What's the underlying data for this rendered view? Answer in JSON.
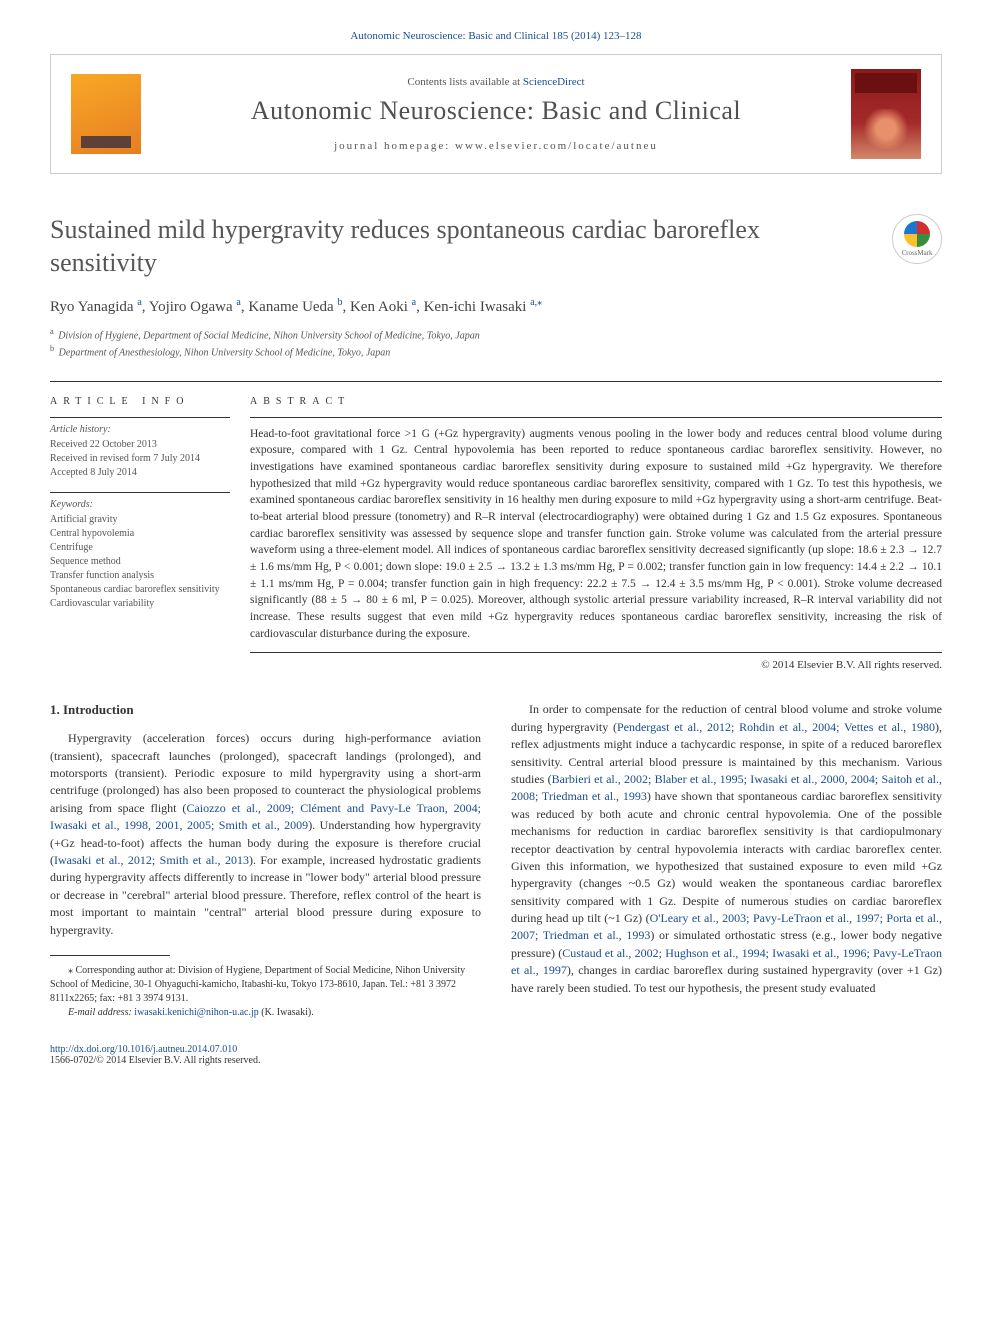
{
  "header": {
    "top_link_text": "Autonomic Neuroscience: Basic and Clinical 185 (2014) 123–128",
    "contents_line_prefix": "Contents lists available at ",
    "contents_link": "ScienceDirect",
    "journal_title": "Autonomic Neuroscience: Basic and Clinical",
    "homepage_label": "journal homepage: ",
    "homepage_url": "www.elsevier.com/locate/autneu",
    "crossmark_label": "CrossMark"
  },
  "article": {
    "title": "Sustained mild hypergravity reduces spontaneous cardiac baroreflex sensitivity",
    "authors_html": "Ryo Yanagida",
    "authors": [
      {
        "name": "Ryo Yanagida",
        "sup": "a"
      },
      {
        "name": "Yojiro Ogawa",
        "sup": "a"
      },
      {
        "name": "Kaname Ueda",
        "sup": "b"
      },
      {
        "name": "Ken Aoki",
        "sup": "a"
      },
      {
        "name": "Ken-ichi Iwasaki",
        "sup": "a,⁎"
      }
    ],
    "affiliations": [
      {
        "sup": "a",
        "text": "Division of Hygiene, Department of Social Medicine, Nihon University School of Medicine, Tokyo, Japan"
      },
      {
        "sup": "b",
        "text": "Department of Anesthesiology, Nihon University School of Medicine, Tokyo, Japan"
      }
    ]
  },
  "info": {
    "heading": "article info",
    "history_label": "Article history:",
    "received": "Received 22 October 2013",
    "revised": "Received in revised form 7 July 2014",
    "accepted": "Accepted 8 July 2014",
    "keywords_label": "Keywords:",
    "keywords": [
      "Artificial gravity",
      "Central hypovolemia",
      "Centrifuge",
      "Sequence method",
      "Transfer function analysis",
      "Spontaneous cardiac baroreflex sensitivity",
      "Cardiovascular variability"
    ]
  },
  "abstract": {
    "heading": "abstract",
    "text": "Head-to-foot gravitational force >1 G (+Gz hypergravity) augments venous pooling in the lower body and reduces central blood volume during exposure, compared with 1 Gz. Central hypovolemia has been reported to reduce spontaneous cardiac baroreflex sensitivity. However, no investigations have examined spontaneous cardiac baroreflex sensitivity during exposure to sustained mild +Gz hypergravity. We therefore hypothesized that mild +Gz hypergravity would reduce spontaneous cardiac baroreflex sensitivity, compared with 1 Gz. To test this hypothesis, we examined spontaneous cardiac baroreflex sensitivity in 16 healthy men during exposure to mild +Gz hypergravity using a short-arm centrifuge. Beat-to-beat arterial blood pressure (tonometry) and R–R interval (electrocardiography) were obtained during 1 Gz and 1.5 Gz exposures. Spontaneous cardiac baroreflex sensitivity was assessed by sequence slope and transfer function gain. Stroke volume was calculated from the arterial pressure waveform using a three-element model. All indices of spontaneous cardiac baroreflex sensitivity decreased significantly (up slope: 18.6 ± 2.3 → 12.7 ± 1.6 ms/mm Hg, P < 0.001; down slope: 19.0 ± 2.5 → 13.2 ± 1.3 ms/mm Hg, P = 0.002; transfer function gain in low frequency: 14.4 ± 2.2 → 10.1 ± 1.1 ms/mm Hg, P = 0.004; transfer function gain in high frequency: 22.2 ± 7.5 → 12.4 ± 3.5 ms/mm Hg, P < 0.001). Stroke volume decreased significantly (88 ± 5 → 80 ± 6 ml, P = 0.025). Moreover, although systolic arterial pressure variability increased, R–R interval variability did not increase. These results suggest that even mild +Gz hypergravity reduces spontaneous cardiac baroreflex sensitivity, increasing the risk of cardiovascular disturbance during the exposure.",
    "copyright": "© 2014 Elsevier B.V. All rights reserved."
  },
  "body": {
    "section_heading": "1. Introduction",
    "left_para": "Hypergravity (acceleration forces) occurs during high-performance aviation (transient), spacecraft launches (prolonged), spacecraft landings (prolonged), and motorsports (transient). Periodic exposure to mild hypergravity using a short-arm centrifuge (prolonged) has also been proposed to counteract the physiological problems arising from space flight (",
    "left_refs1": "Caiozzo et al., 2009; Clément and Pavy-Le Traon, 2004; Iwasaki et al., 1998, 2001, 2005; Smith et al., 2009",
    "left_para2": "). Understanding how hypergravity (+Gz head-to-foot) affects the human body during the exposure is therefore crucial (",
    "left_refs2": "Iwasaki et al., 2012; Smith et al., 2013",
    "left_para3": "). For example, increased hydrostatic gradients during hypergravity affects differently to increase in \"lower body\" arterial blood pressure or decrease in \"cerebral\" arterial blood pressure. Therefore, reflex control of the heart is most important to maintain \"central\" arterial blood pressure during exposure to hypergravity.",
    "right_para": "In order to compensate for the reduction of central blood volume and stroke volume during hypergravity (",
    "right_refs1": "Pendergast et al., 2012; Rohdin et al., 2004; Vettes et al., 1980",
    "right_para2": "), reflex adjustments might induce a tachycardic response, in spite of a reduced baroreflex sensitivity. Central arterial blood pressure is maintained by this mechanism. Various studies (",
    "right_refs2": "Barbieri et al., 2002; Blaber et al., 1995; Iwasaki et al., 2000, 2004; Saitoh et al., 2008; Triedman et al., 1993",
    "right_para3": ") have shown that spontaneous cardiac baroreflex sensitivity was reduced by both acute and chronic central hypovolemia. One of the possible mechanisms for reduction in cardiac baroreflex sensitivity is that cardiopulmonary receptor deactivation by central hypovolemia interacts with cardiac baroreflex center. Given this information, we hypothesized that sustained exposure to even mild +Gz hypergravity (changes ~0.5 Gz) would weaken the spontaneous cardiac baroreflex sensitivity compared with 1 Gz. Despite of numerous studies on cardiac baroreflex during head up tilt (~1 Gz) (",
    "right_refs3": "O'Leary et al., 2003; Pavy-LeTraon et al., 1997; Porta et al., 2007; Triedman et al., 1993",
    "right_para4": ") or simulated orthostatic stress (e.g., lower body negative pressure) (",
    "right_refs4": "Custaud et al., 2002; Hughson et al., 1994; Iwasaki et al., 1996; Pavy-LeTraon et al., 1997",
    "right_para5": "), changes in cardiac baroreflex during sustained hypergravity (over +1 Gz) have rarely been studied. To test our hypothesis, the present study evaluated"
  },
  "footnote": {
    "corr_label": "⁎",
    "corr_text": "Corresponding author at: Division of Hygiene, Department of Social Medicine, Nihon University School of Medicine, 30-1 Ohyaguchi-kamicho, Itabashi-ku, Tokyo 173-8610, Japan. Tel.: +81 3 3972 8111x2265; fax: +81 3 3974 9131.",
    "email_label": "E-mail address: ",
    "email": "iwasaki.kenichi@nihon-u.ac.jp",
    "email_suffix": " (K. Iwasaki)."
  },
  "footer": {
    "doi": "http://dx.doi.org/10.1016/j.autneu.2014.07.010",
    "issn_line": "1566-0702/© 2014 Elsevier B.V. All rights reserved."
  },
  "colors": {
    "link": "#1a4d8f",
    "text": "#333333",
    "heading_gray": "#565656",
    "border": "#cccccc",
    "rule": "#333333"
  }
}
